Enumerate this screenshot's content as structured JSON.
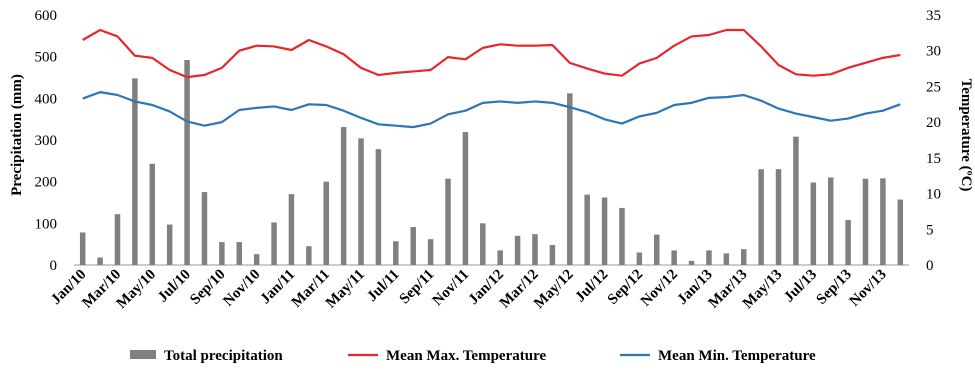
{
  "chart_data": {
    "type": "bar+line",
    "x_labels_shown": [
      "Jan/10",
      "Mar/10",
      "May/10",
      "Jul/10",
      "Sep/10",
      "Nov/10",
      "Jan/11",
      "Mar/11",
      "May/11",
      "Jul/11",
      "Sep/11",
      "Nov/11",
      "Jan/12",
      "Mar/12",
      "May/12",
      "Jul/12",
      "Sep/12",
      "Nov/12",
      "Jan/13",
      "Mar/13",
      "May/13",
      "Jul/13",
      "Sep/13",
      "Nov/13"
    ],
    "y_left": {
      "label": "Precipitation (mm)",
      "range": [
        0,
        600
      ],
      "ticks": [
        0,
        100,
        200,
        300,
        400,
        500,
        600
      ]
    },
    "y_right": {
      "label": "Temperature (ºC)",
      "range": [
        0,
        35
      ],
      "ticks": [
        0,
        5,
        10,
        15,
        20,
        25,
        30,
        35
      ]
    },
    "legend_position": "bottom",
    "grid": false,
    "series": [
      {
        "name": "Total precipitation",
        "kind": "bar",
        "axis": "left",
        "color": "#808080",
        "values": [
          78,
          18,
          122,
          448,
          243,
          97,
          492,
          175,
          55,
          55,
          26,
          102,
          170,
          45,
          200,
          331,
          304,
          278,
          57,
          91,
          62,
          207,
          319,
          100,
          35,
          70,
          74,
          48,
          412,
          169,
          162,
          137,
          30,
          73,
          35,
          10,
          35,
          28,
          38,
          230,
          230,
          308,
          198,
          210,
          108,
          207,
          208,
          157
        ]
      },
      {
        "name": "Mean Max. Temperature",
        "kind": "line",
        "axis": "right",
        "color": "#e8262b",
        "values": [
          31.5,
          32.9,
          32.0,
          29.3,
          29.0,
          27.3,
          26.3,
          26.6,
          27.6,
          30.0,
          30.7,
          30.6,
          30.1,
          31.5,
          30.6,
          29.5,
          27.6,
          26.6,
          26.9,
          27.1,
          27.3,
          29.1,
          28.8,
          30.4,
          30.9,
          30.7,
          30.7,
          30.8,
          28.3,
          27.5,
          26.8,
          26.5,
          28.2,
          29.0,
          30.7,
          32.0,
          32.2,
          32.9,
          32.9,
          30.6,
          28.0,
          26.7,
          26.5,
          26.7,
          27.6,
          28.3,
          29.0,
          29.4
        ]
      },
      {
        "name": "Mean Min. Temperature",
        "kind": "line",
        "axis": "right",
        "color": "#2e75b6",
        "values": [
          23.3,
          24.2,
          23.8,
          22.9,
          22.4,
          21.5,
          20.1,
          19.5,
          20.0,
          21.7,
          22.0,
          22.2,
          21.7,
          22.5,
          22.4,
          21.6,
          20.6,
          19.7,
          19.5,
          19.3,
          19.8,
          21.1,
          21.6,
          22.7,
          22.9,
          22.7,
          22.9,
          22.7,
          22.1,
          21.4,
          20.4,
          19.8,
          20.8,
          21.3,
          22.4,
          22.7,
          23.4,
          23.5,
          23.8,
          23.0,
          21.9,
          21.2,
          20.7,
          20.2,
          20.5,
          21.2,
          21.6,
          22.5
        ]
      }
    ]
  }
}
